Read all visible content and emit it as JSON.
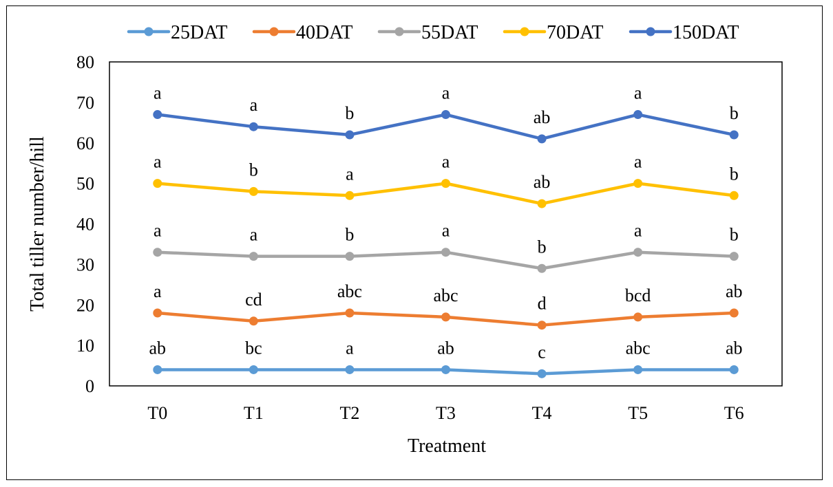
{
  "chart_data": {
    "type": "line",
    "categories": [
      "T0",
      "T1",
      "T2",
      "T3",
      "T4",
      "T5",
      "T6"
    ],
    "series": [
      {
        "name": "25DAT",
        "color": "#5B9BD5",
        "values": [
          4,
          4,
          4,
          4,
          3,
          4,
          4
        ],
        "labels": [
          "ab",
          "bc",
          "a",
          "ab",
          "c",
          "abc",
          "ab"
        ]
      },
      {
        "name": "40DAT",
        "color": "#ED7D31",
        "values": [
          18,
          16,
          18,
          17,
          15,
          17,
          18
        ],
        "labels": [
          "a",
          "cd",
          "abc",
          "abc",
          "d",
          "bcd",
          "ab"
        ]
      },
      {
        "name": "55DAT",
        "color": "#A5A5A5",
        "values": [
          33,
          32,
          32,
          33,
          29,
          33,
          32
        ],
        "labels": [
          "a",
          "a",
          "b",
          "a",
          "b",
          "a",
          "b"
        ]
      },
      {
        "name": "70DAT",
        "color": "#FFC000",
        "values": [
          50,
          48,
          47,
          50,
          45,
          50,
          47
        ],
        "labels": [
          "a",
          "b",
          "a",
          "a",
          "ab",
          "a",
          "b"
        ]
      },
      {
        "name": "150DAT",
        "color": "#4472C4",
        "values": [
          67,
          64,
          62,
          67,
          61,
          67,
          62
        ],
        "labels": [
          "a",
          "a",
          "b",
          "a",
          "ab",
          "a",
          "b"
        ]
      }
    ],
    "xlabel": "Treatment",
    "ylabel": "Total tiller  number/hill",
    "ylim": [
      0,
      80
    ],
    "yticks": [
      0,
      10,
      20,
      30,
      40,
      50,
      60,
      70,
      80
    ],
    "legend_position": "top-center",
    "grid": false
  }
}
